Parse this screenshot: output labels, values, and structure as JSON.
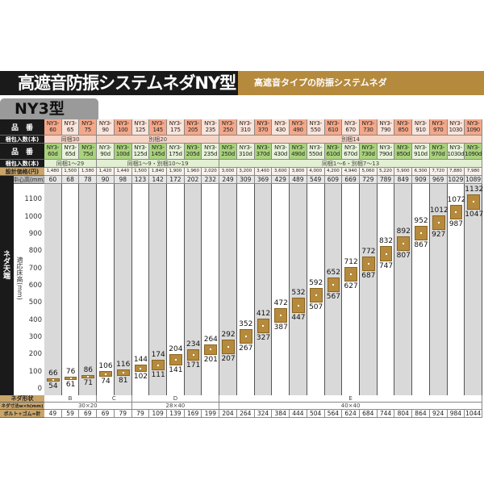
{
  "header": {
    "title": "高遮音防振システムネダNY型",
    "subtitle": "高遮音タイプの防振システムネダ",
    "tab": "NY3型"
  },
  "row_labels": {
    "code": "品　番",
    "pack": "梱包入数(本)",
    "code_d": "品　番",
    "pack_d": "梱包入数(本)",
    "price": "設計価格(円)",
    "center": "中心高(mm)",
    "shape": "ネダ形状",
    "dim": "ネダ寸法w×h(mm)",
    "bolt": "ボルト+ゴム=計"
  },
  "chart_labels": {
    "side": "ネダ天端",
    "axis": "適応床高(mm)",
    "ticks": [
      "0",
      "100",
      "200",
      "300",
      "400",
      "500",
      "600",
      "700",
      "800",
      "900",
      "1000",
      "1100"
    ]
  },
  "colors": {
    "accent": "#b58a3c",
    "code_highlight": "#f3a88a",
    "code_plain": "#fbe4da",
    "d_highlight": "#a9d27c",
    "d_plain": "#e8f3da"
  },
  "items": [
    {
      "code": "NY3-60",
      "code_d": "NY3-60d",
      "price": "1,480",
      "center": "60",
      "max": "66",
      "min": "54",
      "bolt": "49"
    },
    {
      "code": "NY3-65",
      "code_d": "NY3-65d",
      "price": "1,500",
      "center": "68",
      "max": "76",
      "min": "61",
      "bolt": "59"
    },
    {
      "code": "NY3-75",
      "code_d": "NY3-75d",
      "price": "1,580",
      "center": "78",
      "max": "86",
      "min": "71",
      "bolt": "69"
    },
    {
      "code": "NY3-90",
      "code_d": "NY3-90d",
      "price": "1,420",
      "center": "90",
      "max": "106",
      "min": "74",
      "bolt": "69"
    },
    {
      "code": "NY3-100",
      "code_d": "NY3-100d",
      "price": "1,440",
      "center": "98",
      "max": "116",
      "min": "81",
      "bolt": "79"
    },
    {
      "code": "NY3-125",
      "code_d": "NY3-125d",
      "price": "1,500",
      "center": "123",
      "max": "144",
      "min": "102",
      "bolt": "79"
    },
    {
      "code": "NY3-145",
      "code_d": "NY3-145d",
      "price": "1,840",
      "center": "142",
      "max": "174",
      "min": "111",
      "bolt": "109"
    },
    {
      "code": "NY3-175",
      "code_d": "NY3-175d",
      "price": "1,900",
      "center": "172",
      "max": "204",
      "min": "141",
      "bolt": "139"
    },
    {
      "code": "NY3-205",
      "code_d": "NY3-205d",
      "price": "1,960",
      "center": "202",
      "max": "234",
      "min": "171",
      "bolt": "169"
    },
    {
      "code": "NY3-235",
      "code_d": "NY3-235d",
      "price": "2,020",
      "center": "232",
      "max": "264",
      "min": "201",
      "bolt": "199"
    },
    {
      "code": "NY3-250",
      "code_d": "NY3-250d",
      "price": "3,000",
      "center": "249",
      "max": "292",
      "min": "207",
      "bolt": "204"
    },
    {
      "code": "NY3-310",
      "code_d": "NY3-310d",
      "price": "3,200",
      "center": "309",
      "max": "352",
      "min": "267",
      "bolt": "264"
    },
    {
      "code": "NY3-370",
      "code_d": "NY3-370d",
      "price": "3,400",
      "center": "369",
      "max": "412",
      "min": "327",
      "bolt": "324"
    },
    {
      "code": "NY3-430",
      "code_d": "NY3-430d",
      "price": "3,600",
      "center": "429",
      "max": "472",
      "min": "387",
      "bolt": "384"
    },
    {
      "code": "NY3-490",
      "code_d": "NY3-490d",
      "price": "3,800",
      "center": "489",
      "max": "532",
      "min": "447",
      "bolt": "444"
    },
    {
      "code": "NY3-550",
      "code_d": "NY3-550d",
      "price": "4,000",
      "center": "549",
      "max": "592",
      "min": "507",
      "bolt": "504"
    },
    {
      "code": "NY3-610",
      "code_d": "NY3-610d",
      "price": "4,200",
      "center": "609",
      "max": "652",
      "min": "567",
      "bolt": "564"
    },
    {
      "code": "NY3-670",
      "code_d": "NY3-670d",
      "price": "4,940",
      "center": "669",
      "max": "712",
      "min": "627",
      "bolt": "624"
    },
    {
      "code": "NY3-730",
      "code_d": "NY3-730d",
      "price": "5,060",
      "center": "729",
      "max": "772",
      "min": "687",
      "bolt": "684"
    },
    {
      "code": "NY3-790",
      "code_d": "NY3-790d",
      "price": "5,220",
      "center": "789",
      "max": "832",
      "min": "747",
      "bolt": "744"
    },
    {
      "code": "NY3-850",
      "code_d": "NY3-850d",
      "price": "5,900",
      "center": "849",
      "max": "892",
      "min": "807",
      "bolt": "804"
    },
    {
      "code": "NY3-910",
      "code_d": "NY3-910d",
      "price": "6,300",
      "center": "909",
      "max": "952",
      "min": "867",
      "bolt": "864"
    },
    {
      "code": "NY3-970",
      "code_d": "NY3-970d",
      "price": "7,720",
      "center": "969",
      "max": "1012",
      "min": "927",
      "bolt": "924"
    },
    {
      "code": "NY3-1030",
      "code_d": "NY3-1030d",
      "price": "7,880",
      "center": "1029",
      "max": "1072",
      "min": "987",
      "bolt": "984"
    },
    {
      "code": "NY3-1090",
      "code_d": "NY3-1090d",
      "price": "7,980",
      "center": "1089",
      "max": "1132",
      "min": "1047",
      "bolt": "1044"
    }
  ],
  "groups": {
    "pack": [
      {
        "label": "同梱30",
        "span": 3
      },
      {
        "label": "別梱20",
        "span": 7
      },
      {
        "label": "別梱14",
        "span": 15
      }
    ],
    "pack_d": [
      {
        "label": "同梱1～29",
        "span": 3
      },
      {
        "label": "同梱1～9・別梱10～19",
        "span": 7
      },
      {
        "label": "同梱1～6・別梱7～13",
        "span": 15
      }
    ],
    "shape": [
      {
        "label": "B",
        "span": 3
      },
      {
        "label": "C",
        "span": 2
      },
      {
        "label": "D",
        "span": 5
      },
      {
        "label": "E",
        "span": 15
      }
    ],
    "dim": [
      {
        "label": "30×20",
        "span": 5
      },
      {
        "label": "28×40",
        "span": 5
      },
      {
        "label": "40×40",
        "span": 15
      }
    ]
  }
}
